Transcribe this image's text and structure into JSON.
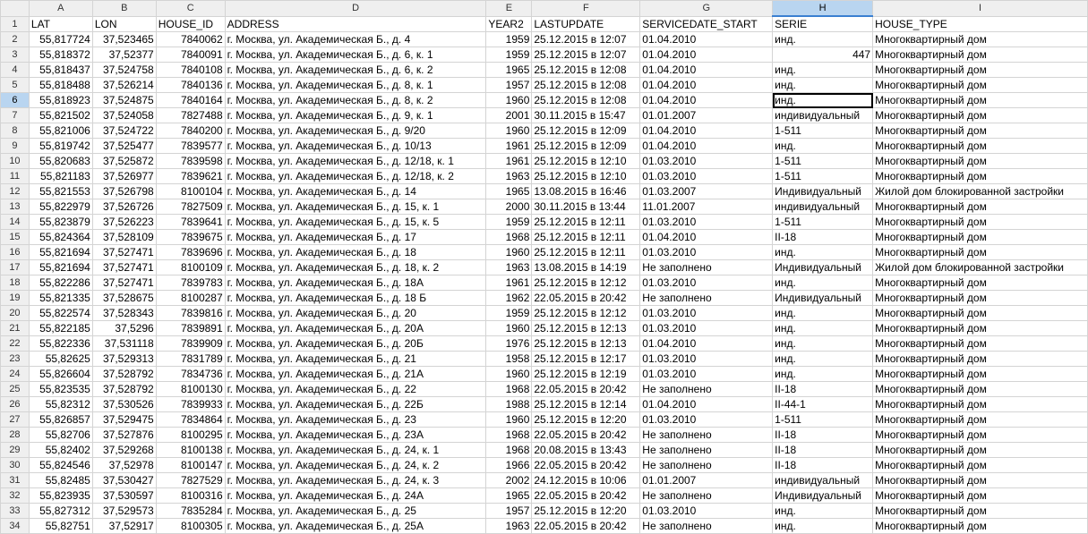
{
  "columns": [
    "A",
    "B",
    "C",
    "D",
    "E",
    "F",
    "G",
    "H",
    "I"
  ],
  "selected_column": "H",
  "active_row": 6,
  "rows": [
    [
      "LAT",
      "LON",
      "HOUSE_ID",
      "ADDRESS",
      "YEAR2",
      "LASTUPDATE",
      "SERVICEDATE_START",
      "SERIE",
      "HOUSE_TYPE"
    ],
    [
      "55,817724",
      "37,523465",
      "7840062",
      "г. Москва, ул. Академическая Б., д. 4",
      "1959",
      "25.12.2015 в 12:07",
      "01.04.2010",
      "инд.",
      "Многоквартирный дом"
    ],
    [
      "55,818372",
      "37,52377",
      "7840091",
      "г. Москва, ул. Академическая Б., д. 6, к. 1",
      "1959",
      "25.12.2015 в 12:07",
      "01.04.2010",
      "447",
      "Многоквартирный дом"
    ],
    [
      "55,818437",
      "37,524758",
      "7840108",
      "г. Москва, ул. Академическая Б., д. 6, к. 2",
      "1965",
      "25.12.2015 в 12:08",
      "01.04.2010",
      "инд.",
      "Многоквартирный дом"
    ],
    [
      "55,818488",
      "37,526214",
      "7840136",
      "г. Москва, ул. Академическая Б., д. 8, к. 1",
      "1957",
      "25.12.2015 в 12:08",
      "01.04.2010",
      "инд.",
      "Многоквартирный дом"
    ],
    [
      "55,818923",
      "37,524875",
      "7840164",
      "г. Москва, ул. Академическая Б., д. 8, к. 2",
      "1960",
      "25.12.2015 в 12:08",
      "01.04.2010",
      "инд.",
      "Многоквартирный дом"
    ],
    [
      "55,821502",
      "37,524058",
      "7827488",
      "г. Москва, ул. Академическая Б., д. 9, к. 1",
      "2001",
      "30.11.2015 в 15:47",
      "01.01.2007",
      "индивидуальный",
      "Многоквартирный дом"
    ],
    [
      "55,821006",
      "37,524722",
      "7840200",
      "г. Москва, ул. Академическая Б., д. 9/20",
      "1960",
      "25.12.2015 в 12:09",
      "01.04.2010",
      "1-511",
      "Многоквартирный дом"
    ],
    [
      "55,819742",
      "37,525477",
      "7839577",
      "г. Москва, ул. Академическая Б., д. 10/13",
      "1961",
      "25.12.2015 в 12:09",
      "01.04.2010",
      "инд.",
      "Многоквартирный дом"
    ],
    [
      "55,820683",
      "37,525872",
      "7839598",
      "г. Москва, ул. Академическая Б., д. 12/18, к. 1",
      "1961",
      "25.12.2015 в 12:10",
      "01.03.2010",
      "1-511",
      "Многоквартирный дом"
    ],
    [
      "55,821183",
      "37,526977",
      "7839621",
      "г. Москва, ул. Академическая Б., д. 12/18, к. 2",
      "1963",
      "25.12.2015 в 12:10",
      "01.03.2010",
      "1-511",
      "Многоквартирный дом"
    ],
    [
      "55,821553",
      "37,526798",
      "8100104",
      "г. Москва, ул. Академическая Б., д. 14",
      "1965",
      "13.08.2015 в 16:46",
      "01.03.2007",
      "Индивидуальный",
      "Жилой дом блокированной застройки"
    ],
    [
      "55,822979",
      "37,526726",
      "7827509",
      "г. Москва, ул. Академическая Б., д. 15, к. 1",
      "2000",
      "30.11.2015 в 13:44",
      "11.01.2007",
      "индивидуальный",
      "Многоквартирный дом"
    ],
    [
      "55,823879",
      "37,526223",
      "7839641",
      "г. Москва, ул. Академическая Б., д. 15, к. 5",
      "1959",
      "25.12.2015 в 12:11",
      "01.03.2010",
      "1-511",
      "Многоквартирный дом"
    ],
    [
      "55,824364",
      "37,528109",
      "7839675",
      "г. Москва, ул. Академическая Б., д. 17",
      "1968",
      "25.12.2015 в 12:11",
      "01.04.2010",
      "II-18",
      "Многоквартирный дом"
    ],
    [
      "55,821694",
      "37,527471",
      "7839696",
      "г. Москва, ул. Академическая Б., д. 18",
      "1960",
      "25.12.2015 в 12:11",
      "01.03.2010",
      "инд.",
      "Многоквартирный дом"
    ],
    [
      "55,821694",
      "37,527471",
      "8100109",
      "г. Москва, ул. Академическая Б., д. 18, к. 2",
      "1963",
      "13.08.2015 в 14:19",
      "Не заполнено",
      "Индивидуальный",
      "Жилой дом блокированной застройки"
    ],
    [
      "55,822286",
      "37,527471",
      "7839783",
      "г. Москва, ул. Академическая Б., д. 18А",
      "1961",
      "25.12.2015 в 12:12",
      "01.03.2010",
      "инд.",
      "Многоквартирный дом"
    ],
    [
      "55,821335",
      "37,528675",
      "8100287",
      "г. Москва, ул. Академическая Б., д. 18 Б",
      "1962",
      "22.05.2015 в 20:42",
      "Не заполнено",
      "Индивидуальный",
      "Многоквартирный дом"
    ],
    [
      "55,822574",
      "37,528343",
      "7839816",
      "г. Москва, ул. Академическая Б., д. 20",
      "1959",
      "25.12.2015 в 12:12",
      "01.03.2010",
      "инд.",
      "Многоквартирный дом"
    ],
    [
      "55,822185",
      "37,5296",
      "7839891",
      "г. Москва, ул. Академическая Б., д. 20А",
      "1960",
      "25.12.2015 в 12:13",
      "01.03.2010",
      "инд.",
      "Многоквартирный дом"
    ],
    [
      "55,822336",
      "37,531118",
      "7839909",
      "г. Москва, ул. Академическая Б., д. 20Б",
      "1976",
      "25.12.2015 в 12:13",
      "01.04.2010",
      "инд.",
      "Многоквартирный дом"
    ],
    [
      "55,82625",
      "37,529313",
      "7831789",
      "г. Москва, ул. Академическая Б., д. 21",
      "1958",
      "25.12.2015 в 12:17",
      "01.03.2010",
      "инд.",
      "Многоквартирный дом"
    ],
    [
      "55,826604",
      "37,528792",
      "7834736",
      "г. Москва, ул. Академическая Б., д. 21А",
      "1960",
      "25.12.2015 в 12:19",
      "01.03.2010",
      "инд.",
      "Многоквартирный дом"
    ],
    [
      "55,823535",
      "37,528792",
      "8100130",
      "г. Москва, ул. Академическая Б., д. 22",
      "1968",
      "22.05.2015 в 20:42",
      "Не заполнено",
      "II-18",
      "Многоквартирный дом"
    ],
    [
      "55,82312",
      "37,530526",
      "7839933",
      "г. Москва, ул. Академическая Б., д. 22Б",
      "1988",
      "25.12.2015 в 12:14",
      "01.04.2010",
      "II-44-1",
      "Многоквартирный дом"
    ],
    [
      "55,826857",
      "37,529475",
      "7834864",
      "г. Москва, ул. Академическая Б., д. 23",
      "1960",
      "25.12.2015 в 12:20",
      "01.03.2010",
      "1-511",
      "Многоквартирный дом"
    ],
    [
      "55,82706",
      "37,527876",
      "8100295",
      "г. Москва, ул. Академическая Б., д. 23А",
      "1968",
      "22.05.2015 в 20:42",
      "Не заполнено",
      "II-18",
      "Многоквартирный дом"
    ],
    [
      "55,82402",
      "37,529268",
      "8100138",
      "г. Москва, ул. Академическая Б., д. 24, к. 1",
      "1968",
      "20.08.2015 в 13:43",
      "Не заполнено",
      "II-18",
      "Многоквартирный дом"
    ],
    [
      "55,824546",
      "37,52978",
      "8100147",
      "г. Москва, ул. Академическая Б., д. 24, к. 2",
      "1966",
      "22.05.2015 в 20:42",
      "Не заполнено",
      "II-18",
      "Многоквартирный дом"
    ],
    [
      "55,82485",
      "37,530427",
      "7827529",
      "г. Москва, ул. Академическая Б., д. 24, к. 3",
      "2002",
      "24.12.2015 в 10:06",
      "01.01.2007",
      "индивидуальный",
      "Многоквартирный дом"
    ],
    [
      "55,823935",
      "37,530597",
      "8100316",
      "г. Москва, ул. Академическая Б., д. 24А",
      "1965",
      "22.05.2015 в 20:42",
      "Не заполнено",
      "Индивидуальный",
      "Многоквартирный дом"
    ],
    [
      "55,827312",
      "37,529573",
      "7835284",
      "г. Москва, ул. Академическая Б., д. 25",
      "1957",
      "25.12.2015 в 12:20",
      "01.03.2010",
      "инд.",
      "Многоквартирный дом"
    ],
    [
      "55,82751",
      "37,52917",
      "8100305",
      "г. Москва, ул. Академическая Б., д. 25А",
      "1963",
      "22.05.2015 в 20:42",
      "Не заполнено",
      "инд.",
      "Многоквартирный дом"
    ]
  ]
}
